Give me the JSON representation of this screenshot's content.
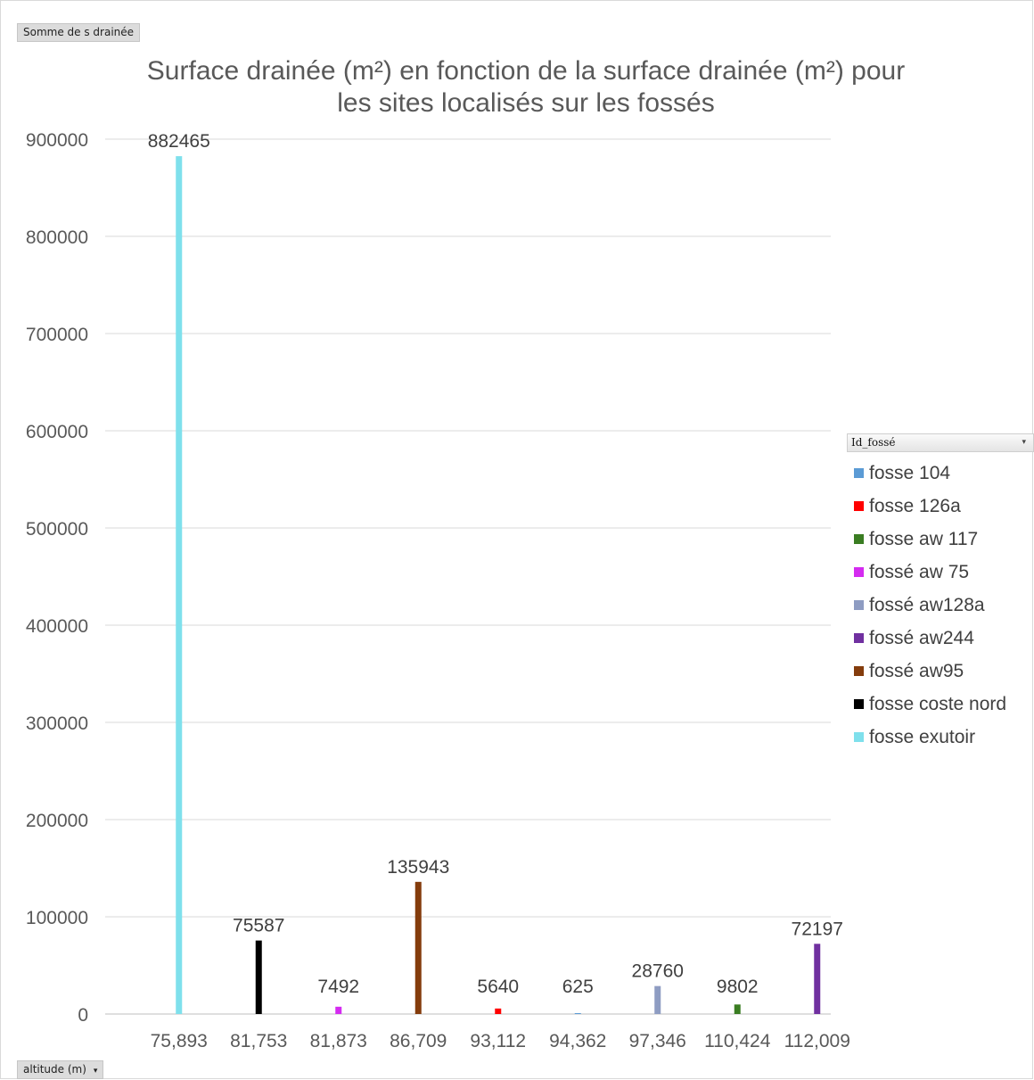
{
  "pivot": {
    "value_field_label": "Somme de s drainée",
    "axis_field_label": "altitude (m)",
    "axis_field_dropdown": "▾",
    "legend_field_label": "Id_fossé",
    "legend_field_dropdown": "▾"
  },
  "chart_data": {
    "type": "bar",
    "title": "Surface drainée (m²) en fonction de la surface drainée (m²) pour les sites localisés sur les fossés",
    "title_lines": [
      "Surface drainée (m²) en fonction de la surface drainée (m²) pour",
      "les sites localisés sur les fossés"
    ],
    "categories": [
      "75,893",
      "81,753",
      "81,873",
      "86,709",
      "93,112",
      "94,362",
      "97,346",
      "110,424",
      "112,009"
    ],
    "yticks": [
      "0",
      "100000",
      "200000",
      "300000",
      "400000",
      "500000",
      "600000",
      "700000",
      "800000",
      "900000"
    ],
    "ylim": [
      0,
      900000
    ],
    "grid": true,
    "legend_position": "right",
    "series": [
      {
        "name": "fosse 104",
        "color": "#5b9bd5",
        "values": [
          null,
          null,
          null,
          null,
          null,
          625,
          null,
          null,
          null
        ]
      },
      {
        "name": "fosse 126a",
        "color": "#ff0000",
        "values": [
          null,
          null,
          null,
          null,
          5640,
          null,
          null,
          null,
          null
        ]
      },
      {
        "name": "fosse aw 117",
        "color": "#3a7d22",
        "values": [
          null,
          null,
          null,
          null,
          null,
          null,
          null,
          9802,
          null
        ]
      },
      {
        "name": "fossé aw 75",
        "color": "#d42bf0",
        "values": [
          null,
          null,
          7492,
          null,
          null,
          null,
          null,
          null,
          null
        ]
      },
      {
        "name": "fossé aw128a",
        "color": "#8e9cc2",
        "values": [
          null,
          null,
          null,
          null,
          null,
          null,
          28760,
          null,
          null
        ]
      },
      {
        "name": "fossé aw244",
        "color": "#7030a0",
        "values": [
          null,
          null,
          null,
          null,
          null,
          null,
          null,
          null,
          72197
        ]
      },
      {
        "name": "fossé aw95",
        "color": "#843c0c",
        "values": [
          null,
          null,
          null,
          135943,
          null,
          null,
          null,
          null,
          null
        ]
      },
      {
        "name": "fosse coste nord",
        "color": "#000000",
        "values": [
          null,
          75587,
          null,
          null,
          null,
          null,
          null,
          null,
          null
        ]
      },
      {
        "name": "fosse exutoir",
        "color": "#7fe0ec",
        "values": [
          882465,
          null,
          null,
          null,
          null,
          null,
          null,
          null,
          null
        ]
      }
    ]
  }
}
